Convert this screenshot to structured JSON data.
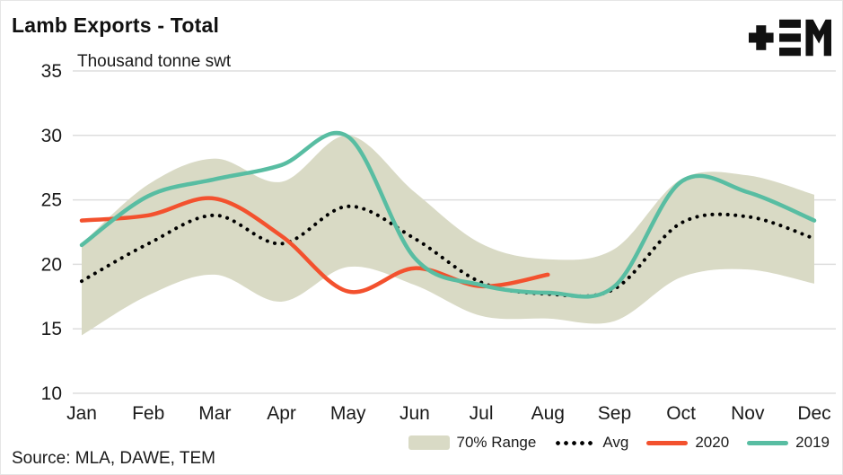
{
  "header": {
    "title": "Lamb Exports - Total",
    "subtitle": "Thousand tonne swt",
    "logo_name": "TEM"
  },
  "source": {
    "text": "Source: MLA, DAWE, TEM"
  },
  "legend": {
    "items": [
      {
        "label": "70% Range",
        "type": "band"
      },
      {
        "label": "Avg",
        "type": "dotted"
      },
      {
        "label": "2020",
        "type": "line"
      },
      {
        "label": "2019",
        "type": "line"
      }
    ]
  },
  "colors": {
    "band": "#d9dac5",
    "avg": "#000000",
    "line2020": "#f3512e",
    "line2019": "#58bda2",
    "grid": "#dedede",
    "text": "#1a1a1a",
    "logo": "#111111"
  },
  "chart_data": {
    "type": "line",
    "title": "Lamb Exports - Total",
    "ylabel": "Thousand tonne swt",
    "categories": [
      "Jan",
      "Feb",
      "Mar",
      "Apr",
      "May",
      "Jun",
      "Jul",
      "Aug",
      "Sep",
      "Oct",
      "Nov",
      "Dec"
    ],
    "ylim": [
      10,
      35
    ],
    "yticks": [
      35,
      30,
      25,
      20,
      15,
      10
    ],
    "grid": "horizontal",
    "legend_position": "bottom",
    "band": {
      "name": "70% Range",
      "color": "#d9dac5",
      "upper": [
        21.6,
        26.2,
        28.2,
        26.4,
        30.0,
        25.6,
        21.6,
        20.4,
        21.2,
        26.6,
        26.9,
        25.4
      ],
      "lower": [
        14.5,
        17.6,
        19.2,
        17.1,
        19.8,
        18.4,
        16.0,
        15.8,
        15.6,
        19.0,
        19.6,
        18.5
      ]
    },
    "series": [
      {
        "name": "Avg",
        "style": "dotted",
        "color": "#000000",
        "values": [
          18.7,
          21.6,
          23.8,
          21.6,
          24.5,
          22.0,
          18.6,
          17.7,
          18.1,
          23.2,
          23.7,
          22.0
        ]
      },
      {
        "name": "2020",
        "style": "solid",
        "color": "#f3512e",
        "values": [
          23.4,
          23.8,
          25.1,
          22.2,
          17.9,
          19.7,
          18.3,
          19.2
        ]
      },
      {
        "name": "2019",
        "style": "solid",
        "color": "#58bda2",
        "values": [
          21.5,
          25.3,
          26.6,
          27.7,
          29.9,
          20.5,
          18.4,
          17.8,
          18.3,
          26.4,
          25.6,
          23.4
        ]
      }
    ]
  }
}
